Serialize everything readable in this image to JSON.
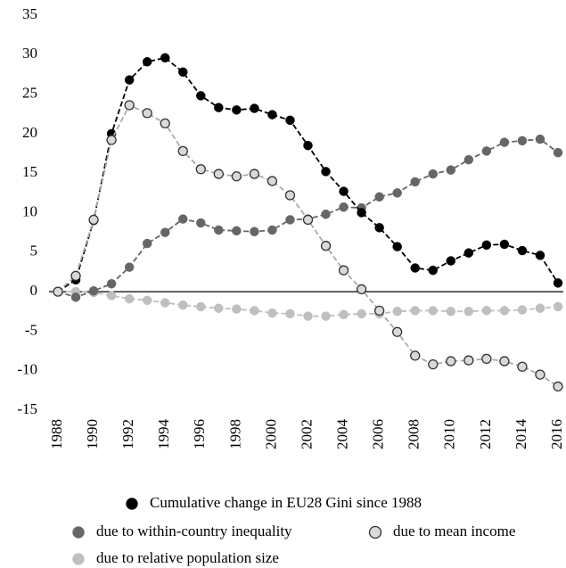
{
  "chart_data": {
    "type": "line",
    "x": [
      1988,
      1989,
      1990,
      1991,
      1992,
      1993,
      1994,
      1995,
      1996,
      1997,
      1998,
      1999,
      2000,
      2001,
      2002,
      2003,
      2004,
      2005,
      2006,
      2007,
      2008,
      2009,
      2010,
      2011,
      2012,
      2013,
      2014,
      2015,
      2016
    ],
    "xlim": [
      1988,
      2016
    ],
    "xticks": [
      1988,
      1990,
      1992,
      1994,
      1996,
      1998,
      2000,
      2002,
      2004,
      2006,
      2008,
      2010,
      2012,
      2014,
      2016
    ],
    "ylim": [
      -15,
      35
    ],
    "yticks": [
      -15,
      -10,
      -5,
      0,
      5,
      10,
      15,
      20,
      25,
      30,
      35
    ],
    "grid": false,
    "legend": "bottom",
    "series": [
      {
        "name": "Cumulative change in EU28 Gini since 1988",
        "color": "#000000",
        "values": [
          0,
          1.5,
          9,
          20,
          26.8,
          29.1,
          29.6,
          27.8,
          24.8,
          23.3,
          23.0,
          23.2,
          22.4,
          21.7,
          18.5,
          15.2,
          12.7,
          10.0,
          8.1,
          5.7,
          3.0,
          2.7,
          3.9,
          4.9,
          5.9,
          6.0,
          5.2,
          4.6,
          1.1
        ]
      },
      {
        "name": "due to within-country inequality",
        "color": "#666666",
        "values": [
          0,
          -0.7,
          0.1,
          1.0,
          3.1,
          6.1,
          7.5,
          9.2,
          8.7,
          7.8,
          7.7,
          7.6,
          7.8,
          9.1,
          9.2,
          9.8,
          10.7,
          10.6,
          12.0,
          12.5,
          13.9,
          14.9,
          15.4,
          16.7,
          17.8,
          18.9,
          19.1,
          19.3,
          17.6
        ]
      },
      {
        "name": "due to mean income",
        "color": "#d9d9d9",
        "values": [
          0,
          2.0,
          9.1,
          19.2,
          23.6,
          22.6,
          21.3,
          17.8,
          15.5,
          14.9,
          14.6,
          14.9,
          14.0,
          12.2,
          9.1,
          5.8,
          2.7,
          0.3,
          -2.4,
          -5.1,
          -8.1,
          -9.2,
          -8.8,
          -8.7,
          -8.5,
          -8.8,
          -9.5,
          -10.5,
          -12.0
        ]
      },
      {
        "name": "due to relative population size",
        "color": "#bfbfbf",
        "values": [
          0,
          0,
          -0.1,
          -0.5,
          -0.9,
          -1.1,
          -1.4,
          -1.7,
          -1.9,
          -2.1,
          -2.2,
          -2.4,
          -2.7,
          -2.8,
          -3.1,
          -3.1,
          -2.9,
          -2.8,
          -2.8,
          -2.5,
          -2.4,
          -2.4,
          -2.5,
          -2.5,
          -2.4,
          -2.4,
          -2.3,
          -2.1,
          -1.9
        ]
      }
    ]
  }
}
